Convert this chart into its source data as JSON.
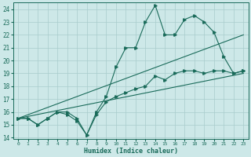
{
  "xlabel": "Humidex (Indice chaleur)",
  "ylabel": "",
  "bg_color": "#cde8e8",
  "grid_color": "#a8cccc",
  "line_color": "#1a6b5a",
  "xlim": [
    -0.5,
    23.5
  ],
  "ylim": [
    13.9,
    24.5
  ],
  "yticks": [
    14,
    15,
    16,
    17,
    18,
    19,
    20,
    21,
    22,
    23,
    24
  ],
  "xticks": [
    0,
    1,
    2,
    3,
    4,
    5,
    6,
    7,
    8,
    9,
    10,
    11,
    12,
    13,
    14,
    15,
    16,
    17,
    18,
    19,
    20,
    21,
    22,
    23
  ],
  "series": [
    {
      "x": [
        0,
        1,
        2,
        3,
        4,
        5,
        6,
        7,
        8,
        9,
        10,
        11,
        12,
        13,
        14,
        15,
        16,
        17,
        18,
        19,
        20,
        21,
        22,
        23
      ],
      "y": [
        15.5,
        15.5,
        15.0,
        15.5,
        16.0,
        16.0,
        15.5,
        14.2,
        16.0,
        17.2,
        19.5,
        21.0,
        21.0,
        23.0,
        24.3,
        22.0,
        22.0,
        23.2,
        23.5,
        23.0,
        22.2,
        20.3,
        19.0,
        19.2
      ],
      "has_marker": true
    },
    {
      "x": [
        0,
        23
      ],
      "y": [
        15.5,
        22.0
      ],
      "has_marker": false
    },
    {
      "x": [
        0,
        23
      ],
      "y": [
        15.5,
        19.0
      ],
      "has_marker": false
    },
    {
      "x": [
        0,
        1,
        2,
        3,
        4,
        5,
        6,
        7,
        8,
        9,
        10,
        11,
        12,
        13,
        14,
        15,
        16,
        17,
        18,
        19,
        20,
        21,
        22,
        23
      ],
      "y": [
        15.5,
        15.5,
        15.0,
        15.5,
        16.0,
        15.8,
        15.3,
        14.2,
        15.8,
        16.8,
        17.2,
        17.5,
        17.8,
        18.0,
        18.8,
        18.5,
        19.0,
        19.2,
        19.2,
        19.0,
        19.2,
        19.2,
        19.0,
        19.2
      ],
      "has_marker": true
    }
  ]
}
